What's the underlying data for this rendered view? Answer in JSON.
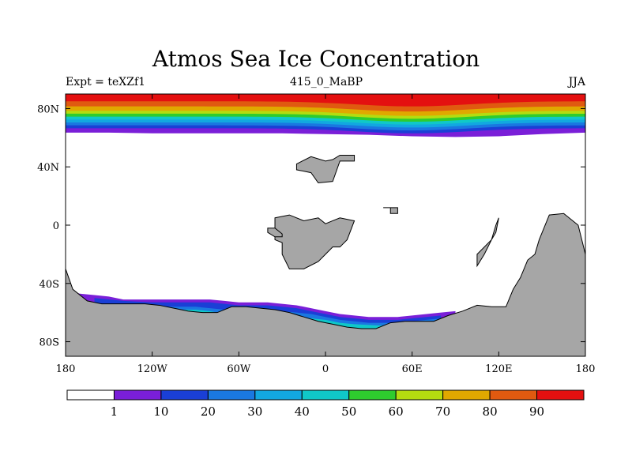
{
  "chart_data": {
    "type": "heatmap",
    "title": "Atmos Sea Ice Concentration",
    "left_label": "Expt = teXZf1",
    "center_label": "415_0_MaBP",
    "right_label": "JJA",
    "x_axis": {
      "range": [
        -180,
        180
      ],
      "ticks": [
        -180,
        -120,
        -60,
        0,
        60,
        120,
        180
      ],
      "tick_labels": [
        "180",
        "120W",
        "60W",
        "0",
        "60E",
        "120E",
        "180"
      ]
    },
    "y_axis": {
      "range": [
        -90,
        90
      ],
      "ticks": [
        80,
        40,
        0,
        -40,
        -80
      ],
      "tick_labels": [
        "80N",
        "40N",
        "0",
        "40S",
        "80S"
      ]
    },
    "colorbar": {
      "levels": [
        1,
        10,
        20,
        30,
        40,
        50,
        60,
        70,
        80,
        90
      ],
      "colors": [
        "#ffffff",
        "#7a1fd8",
        "#1a3fd6",
        "#1a78e0",
        "#12a8e0",
        "#10c8c8",
        "#2ecc2e",
        "#b4dc10",
        "#e0a800",
        "#e05a10",
        "#e41010"
      ]
    },
    "land_color": "#a6a6a6",
    "arctic_band": {
      "lon": [
        -180,
        -150,
        -120,
        -90,
        -60,
        -30,
        0,
        30,
        60,
        90,
        120,
        150,
        180
      ],
      "edge_lat": [
        63.5,
        63.5,
        63,
        63,
        63,
        63,
        62.5,
        62,
        61,
        60.5,
        61,
        62.5,
        63.5
      ],
      "level_lats": [
        64.5,
        66.5,
        68.5,
        70.5,
        72.5,
        74.5,
        76.5,
        78.5,
        81.5,
        85
      ],
      "dip_center_lon": 60,
      "dip": 3.5
    },
    "antarctic_ice": [
      {
        "level": 1,
        "lon": [
          -175,
          -170,
          -160,
          -150,
          -140,
          -130,
          -120,
          -110,
          -100,
          -90,
          -80,
          -70,
          -60,
          -50,
          -40,
          -30,
          -20,
          -10,
          0,
          10,
          20,
          30,
          40,
          50,
          60,
          70,
          80,
          90
        ],
        "lat": [
          -46,
          -47,
          -48,
          -49,
          -51,
          -51,
          -51,
          -51,
          -51,
          -51,
          -51,
          -52,
          -53,
          -53,
          -53,
          -54,
          -55,
          -57,
          -59,
          -61,
          -62,
          -63,
          -63,
          -63,
          -62,
          -61,
          -60,
          -59
        ]
      },
      {
        "level": 10,
        "lon": [
          -160,
          -140,
          -120,
          -110,
          -100,
          -90,
          -80,
          -70,
          -60,
          -50,
          -40,
          -30,
          -20,
          -10,
          0,
          10,
          20,
          30,
          40,
          50,
          60,
          70,
          80
        ],
        "lat": [
          -50,
          -52,
          -53,
          -53,
          -53,
          -53,
          -53,
          -54,
          -55,
          -55,
          -55,
          -56,
          -57,
          -59,
          -61,
          -63,
          -64,
          -65,
          -65,
          -65,
          -64,
          -63,
          -62
        ]
      },
      {
        "level": 20,
        "lon": [
          -120,
          -110,
          -100,
          -90,
          -80,
          -70,
          -60,
          -50,
          -40,
          -30,
          -20,
          -10,
          0,
          10,
          20,
          30,
          40,
          50,
          60,
          70,
          80
        ],
        "lat": [
          -56,
          -56,
          -56,
          -56,
          -57,
          -58,
          -59,
          -58,
          -58,
          -59,
          -60,
          -61,
          -63,
          -65,
          -66,
          -67,
          -67,
          -67,
          -66,
          -65,
          -64
        ]
      },
      {
        "level": 40,
        "lon": [
          -115,
          -100,
          -90,
          -80,
          -70,
          -60,
          -50,
          -40,
          -30,
          -20,
          -10,
          0,
          10,
          20,
          40,
          60,
          70,
          80
        ],
        "lat": [
          -59,
          -58,
          -58,
          -59,
          -61,
          -62,
          -61,
          -61,
          -62,
          -63,
          -64,
          -65,
          -67,
          -68,
          -69,
          -68,
          -67,
          -66
        ]
      },
      {
        "level": 70,
        "lon": [
          -110,
          -100,
          -90,
          -80,
          -70,
          -60,
          -50,
          -40,
          -30,
          -20,
          -10,
          0,
          10,
          20,
          30,
          60,
          80
        ],
        "lat": [
          -61,
          -60,
          -61,
          -63,
          -65,
          -66,
          -65,
          -64,
          -65,
          -66,
          -67,
          -68,
          -70,
          -71,
          -72,
          -71,
          -69
        ]
      },
      {
        "level": 90,
        "lon": [
          -105,
          -95,
          -85,
          -75,
          -65,
          -55,
          -45,
          -35,
          -25,
          -15,
          -5,
          5,
          15,
          25,
          35
        ],
        "lat": [
          -64,
          -64,
          -66,
          -68,
          -70,
          -72,
          -68,
          -68,
          -69,
          -70,
          -71,
          -73,
          -75,
          -76,
          -78
        ]
      }
    ],
    "land": [
      {
        "name": "antarctica-and-southern-continents",
        "lon": [
          -180,
          -175,
          -165,
          -155,
          -145,
          -135,
          -125,
          -115,
          -105,
          -95,
          -85,
          -75,
          -65,
          -55,
          -45,
          -35,
          -25,
          -15,
          -5,
          5,
          15,
          25,
          35,
          45,
          55,
          65,
          75,
          85,
          95,
          105,
          115,
          125,
          130,
          135,
          140,
          145,
          148,
          155,
          165,
          175,
          180,
          180,
          -180
        ],
        "lat": [
          -30,
          -44,
          -52,
          -54,
          -54,
          -54,
          -54,
          -55,
          -57,
          -59,
          -60,
          -60,
          -56,
          -56,
          -57,
          -58,
          -60,
          -63,
          -66,
          -68,
          -70,
          -71,
          -71,
          -67,
          -66,
          -66,
          -66,
          -62,
          -59,
          -55,
          -56,
          -56,
          -44,
          -36,
          -24,
          -20,
          -10,
          7,
          8,
          0,
          -20,
          -90,
          -90
        ]
      },
      {
        "name": "eurasia-block",
        "lon": [
          -20,
          -10,
          0,
          5,
          10,
          20,
          20,
          10,
          5,
          -5,
          -10,
          -20
        ],
        "lat": [
          42,
          47,
          44,
          45,
          48,
          48,
          44,
          44,
          30,
          29,
          36,
          38
        ]
      },
      {
        "name": "africa-block",
        "lon": [
          -35,
          -25,
          -15,
          -5,
          0,
          5,
          10,
          20,
          15,
          10,
          5,
          0,
          -5,
          -15,
          -25,
          -30,
          -30,
          -35
        ],
        "lat": [
          5,
          7,
          3,
          5,
          1,
          3,
          5,
          3,
          -10,
          -15,
          -15,
          -20,
          -25,
          -30,
          -30,
          -20,
          -12,
          -10
        ]
      },
      {
        "name": "north-block",
        "lon": [
          40,
          45,
          45,
          50,
          50,
          40
        ],
        "lat": [
          12,
          12,
          8,
          8,
          12,
          12
        ]
      },
      {
        "name": "mid-isles",
        "lon": [
          -40,
          -35,
          -30,
          -30,
          -35,
          -40
        ],
        "lat": [
          -2,
          -2,
          -6,
          -8,
          -8,
          -5
        ]
      },
      {
        "name": "east-island",
        "lon": [
          105,
          115,
          118,
          120,
          118,
          115,
          110,
          105
        ],
        "lat": [
          -20,
          -10,
          -5,
          5,
          0,
          -10,
          -20,
          -28
        ]
      }
    ]
  }
}
